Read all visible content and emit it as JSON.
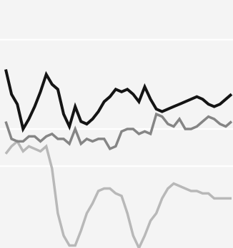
{
  "chart_data": {
    "type": "line",
    "title": "",
    "xlabel": "",
    "ylabel": "",
    "grid": true,
    "legend": "none",
    "ylim": [
      0,
      100
    ],
    "y_gridlines": [
      33,
      48,
      84
    ],
    "colors": {
      "background": "#f4f4f4",
      "grid": "#ffffff",
      "series_dark": "#141414",
      "series_medium": "#858585",
      "series_light": "#b8b8b8"
    },
    "x": [
      0,
      1,
      2,
      3,
      4,
      5,
      6,
      7,
      8,
      9,
      10,
      11,
      12,
      13,
      14,
      15,
      16,
      17,
      18,
      19,
      20,
      21,
      22,
      23,
      24,
      25,
      26,
      27,
      28,
      29,
      30,
      31,
      32,
      33,
      34,
      35,
      36,
      37,
      38,
      39
    ],
    "series": [
      {
        "values": [
          72,
          62,
          58,
          48,
          52,
          57,
          63,
          70,
          66,
          64,
          54,
          49,
          57,
          51,
          50,
          52,
          55,
          59,
          61,
          64,
          63,
          64,
          62,
          59,
          65,
          60,
          56,
          55,
          56,
          57,
          58,
          59,
          60,
          61,
          60,
          58,
          57,
          58,
          60,
          62
        ],
        "color_key": "series_dark"
      },
      {
        "values": [
          51,
          44,
          43,
          43,
          45,
          45,
          43,
          45,
          46,
          44,
          44,
          42,
          48,
          42,
          44,
          43,
          44,
          44,
          40,
          41,
          47,
          48,
          48,
          46,
          47,
          46,
          54,
          53,
          50,
          49,
          52,
          48,
          48,
          49,
          51,
          53,
          52,
          50,
          49,
          51
        ],
        "color_key": "series_medium"
      },
      {
        "values": [
          38,
          41,
          43,
          39,
          41,
          40,
          39,
          41,
          32,
          14,
          5,
          1,
          1,
          7,
          14,
          18,
          23,
          24,
          24,
          22,
          21,
          14,
          5,
          0,
          5,
          11,
          14,
          20,
          24,
          26,
          25,
          24,
          23,
          23,
          22,
          22,
          20,
          20,
          20,
          20
        ],
        "color_key": "series_light"
      }
    ]
  }
}
